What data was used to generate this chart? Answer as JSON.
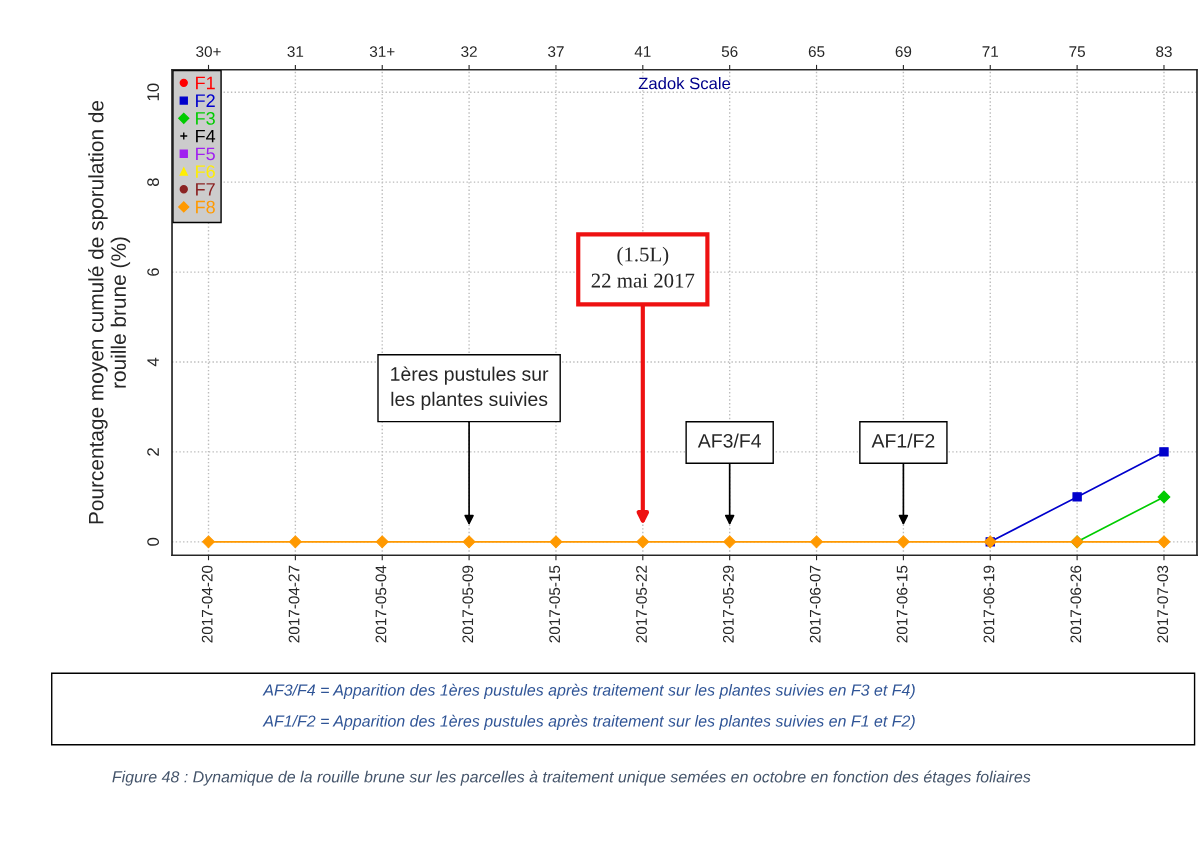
{
  "chart_data": {
    "type": "line",
    "ylabel": "Pourcentage moyen cumulé de sporulation de\nrouille brune (%)",
    "x2label": "Zadok Scale",
    "categories": [
      "2017-04-20",
      "2017-04-27",
      "2017-05-04",
      "2017-05-09",
      "2017-05-15",
      "2017-05-22",
      "2017-05-29",
      "2017-06-07",
      "2017-06-15",
      "2017-06-19",
      "2017-06-26",
      "2017-07-03"
    ],
    "series": [
      {
        "name": "F1",
        "color": "#ff0000",
        "marker": "circle",
        "values": [
          null,
          null,
          null,
          null,
          null,
          null,
          null,
          null,
          null,
          null,
          null,
          null
        ]
      },
      {
        "name": "F2",
        "color": "#0000cc",
        "marker": "square",
        "values": [
          null,
          null,
          null,
          null,
          null,
          null,
          null,
          null,
          null,
          0,
          1,
          2
        ]
      },
      {
        "name": "F3",
        "color": "#00cc00",
        "marker": "diamond",
        "values": [
          null,
          null,
          null,
          null,
          null,
          null,
          null,
          null,
          null,
          null,
          0,
          1
        ]
      },
      {
        "name": "F4",
        "color": "#000000",
        "marker": "cross",
        "values": [
          null,
          null,
          null,
          null,
          null,
          null,
          null,
          null,
          null,
          null,
          null,
          null
        ]
      },
      {
        "name": "F5",
        "color": "#a020f0",
        "marker": "square",
        "values": [
          null,
          null,
          null,
          null,
          null,
          null,
          null,
          null,
          null,
          null,
          null,
          null
        ]
      },
      {
        "name": "F6",
        "color": "#ffee00",
        "marker": "triangle",
        "values": [
          null,
          null,
          null,
          null,
          null,
          null,
          null,
          null,
          null,
          null,
          null,
          null
        ]
      },
      {
        "name": "F7",
        "color": "#8b2323",
        "marker": "circle",
        "values": [
          null,
          null,
          null,
          null,
          null,
          null,
          null,
          null,
          null,
          null,
          null,
          null
        ]
      },
      {
        "name": "F8",
        "color": "#ff9900",
        "marker": "diamond",
        "values": [
          0,
          0,
          0,
          0,
          0,
          0,
          0,
          0,
          0,
          0,
          0,
          0
        ]
      }
    ],
    "ylim": [
      -0.3,
      10.5
    ],
    "yticks": [
      0,
      2,
      4,
      6,
      8,
      10
    ],
    "grid": true,
    "legend": "top left",
    "line_style": "solid",
    "annotations": [
      "1ères pustules sur\nles plantes suivies",
      "(1.5L)\n22 mai 2017",
      "AF3/F4",
      "AF1/F2",
      "30+",
      "31",
      "31+",
      "32",
      "37",
      "41",
      "56",
      "65",
      "69",
      "71",
      "75",
      "83",
      "AF3/F4 = Apparition des 1ères pustules après traitement sur les plantes suivies en F3 et F4)",
      "AF1/F2 = Apparition des 1ères pustules après traitement sur les plantes suivies en F1 et F2)",
      "Figure 48 : Dynamique de la rouille brune sur les parcelles à traitement unique semées en octobre en fonction des étages foliaires"
    ]
  }
}
